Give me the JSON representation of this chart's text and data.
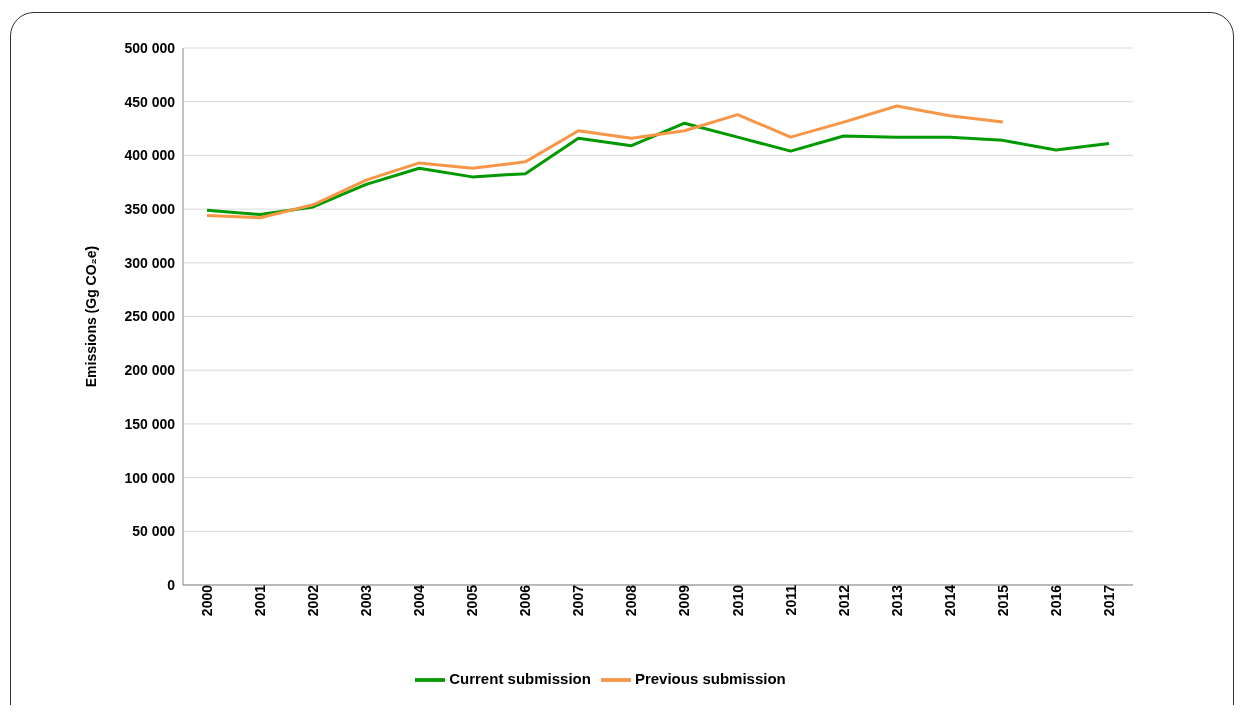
{
  "chart_data": {
    "type": "line",
    "ylabel": "Emissions (Gg CO₂e)",
    "categories": [
      "2000",
      "2001",
      "2002",
      "2003",
      "2004",
      "2005",
      "2006",
      "2007",
      "2008",
      "2009",
      "2010",
      "2011",
      "2012",
      "2013",
      "2014",
      "2015",
      "2016",
      "2017"
    ],
    "series": [
      {
        "name": "Current submission",
        "color": "#009900",
        "values": [
          349000,
          345000,
          352000,
          373000,
          388000,
          380000,
          383000,
          416000,
          409000,
          430000,
          417000,
          404000,
          418000,
          417000,
          417000,
          414000,
          405000,
          411000
        ]
      },
      {
        "name": "Previous submission",
        "color": "#f79646",
        "values": [
          344000,
          342000,
          354000,
          377000,
          393000,
          388000,
          394000,
          423000,
          416000,
          423000,
          438000,
          417000,
          431000,
          446000,
          437000,
          431000,
          null,
          null
        ]
      }
    ],
    "ylim": [
      0,
      500000
    ],
    "yticks": [
      {
        "value": 0,
        "label": "0"
      },
      {
        "value": 50000,
        "label": "50 000"
      },
      {
        "value": 100000,
        "label": "100 000"
      },
      {
        "value": 150000,
        "label": "150 000"
      },
      {
        "value": 200000,
        "label": "200 000"
      },
      {
        "value": 250000,
        "label": "250 000"
      },
      {
        "value": 300000,
        "label": "300 000"
      },
      {
        "value": 350000,
        "label": "350 000"
      },
      {
        "value": 400000,
        "label": "400 000"
      },
      {
        "value": 450000,
        "label": "450 000"
      },
      {
        "value": 500000,
        "label": "500 000"
      }
    ],
    "grid": "y",
    "legend": "bottom",
    "marker": "none",
    "line_style": "solid"
  }
}
